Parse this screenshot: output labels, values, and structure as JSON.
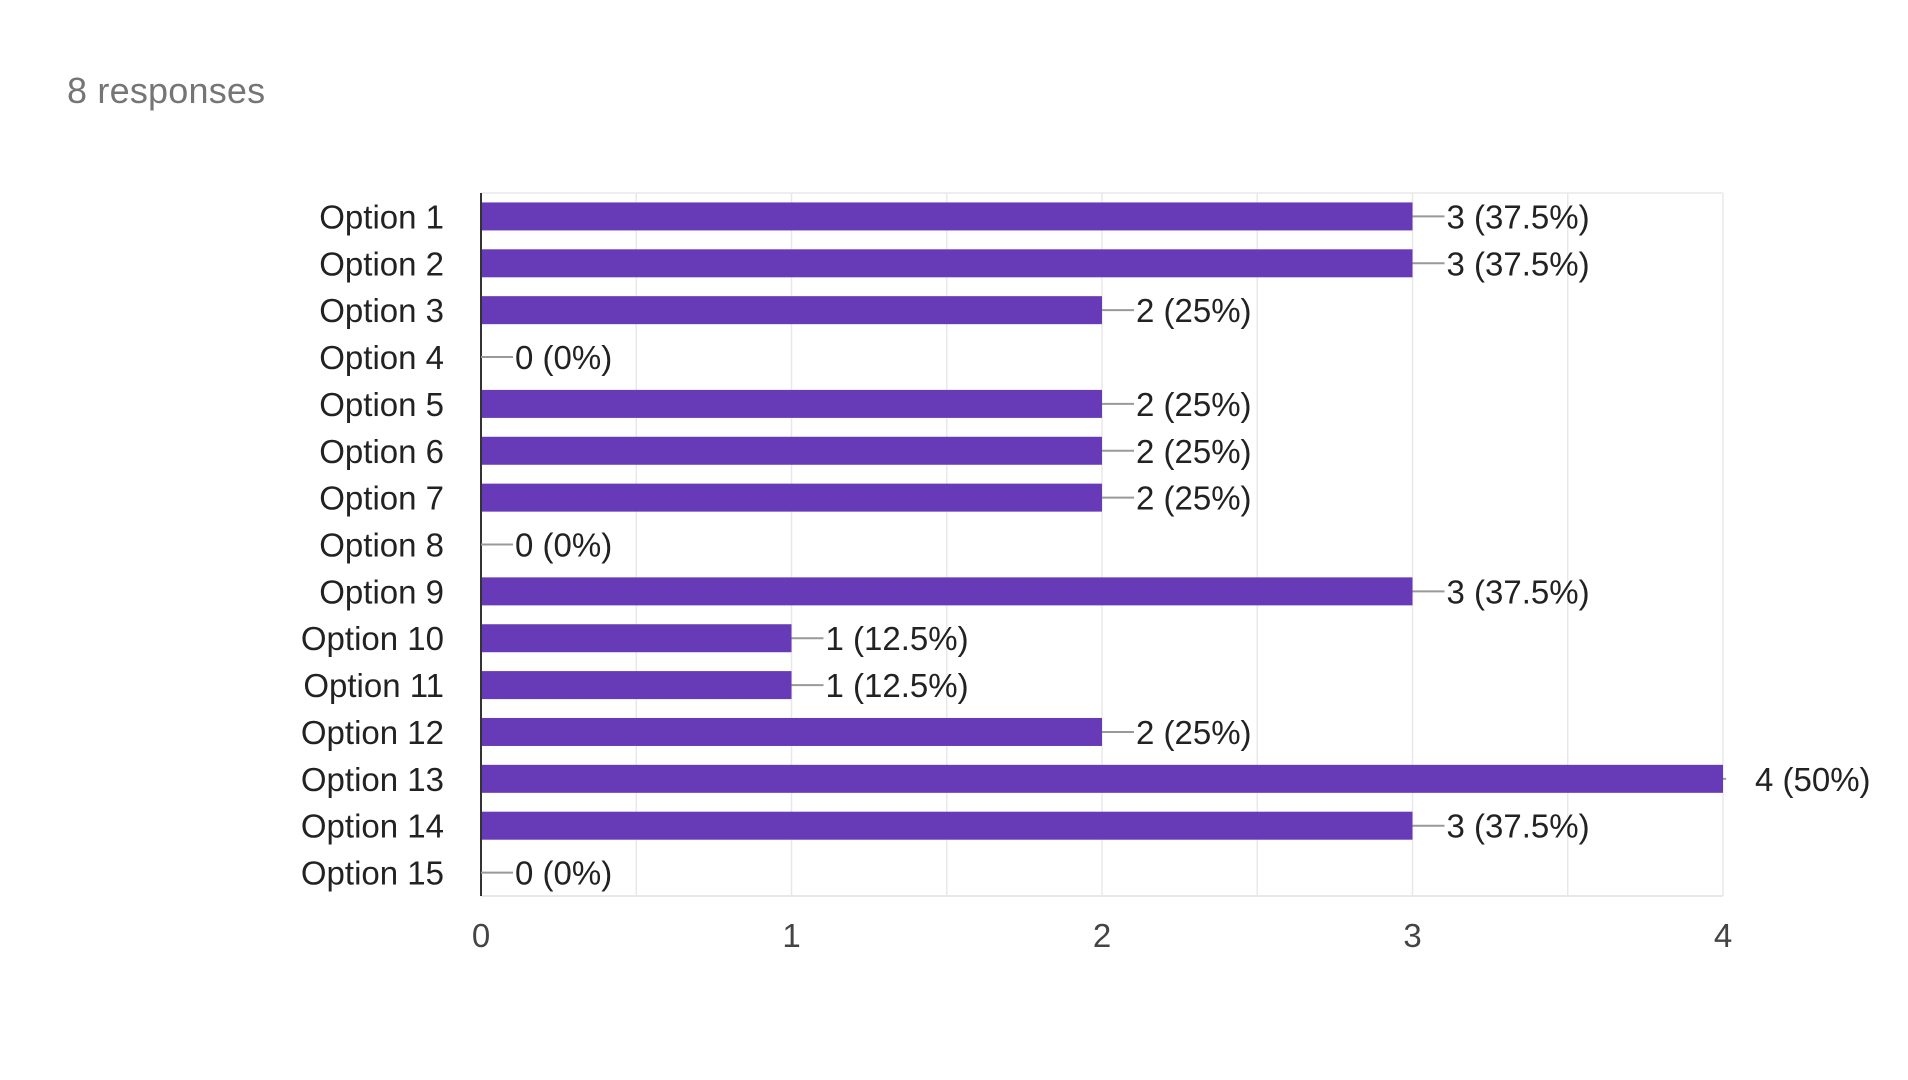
{
  "summary": {
    "responses_label": "8 responses"
  },
  "colors": {
    "bar": "#673ab7",
    "grid": "#e8e8e8",
    "axis": "#333333",
    "text": "#222222",
    "tick_text": "#444444",
    "leader": "#999999"
  },
  "chart_data": {
    "type": "bar",
    "orientation": "horizontal",
    "categories": [
      "Option 1",
      "Option 2",
      "Option 3",
      "Option 4",
      "Option 5",
      "Option 6",
      "Option 7",
      "Option 8",
      "Option 9",
      "Option 10",
      "Option 11",
      "Option 12",
      "Option 13",
      "Option 14",
      "Option 15"
    ],
    "values": [
      3,
      3,
      2,
      0,
      2,
      2,
      2,
      0,
      3,
      1,
      1,
      2,
      4,
      3,
      0
    ],
    "data_labels": [
      "3 (37.5%)",
      "3 (37.5%)",
      "2 (25%)",
      "0 (0%)",
      "2 (25%)",
      "2 (25%)",
      "2 (25%)",
      "0 (0%)",
      "3 (37.5%)",
      "1 (12.5%)",
      "1 (12.5%)",
      "2 (25%)",
      "4 (50%)",
      "3 (37.5%)",
      "0 (0%)"
    ],
    "xlim": [
      0,
      4
    ],
    "xticks": [
      "0",
      "1",
      "2",
      "3",
      "4"
    ],
    "grid": true,
    "legend": "none"
  }
}
